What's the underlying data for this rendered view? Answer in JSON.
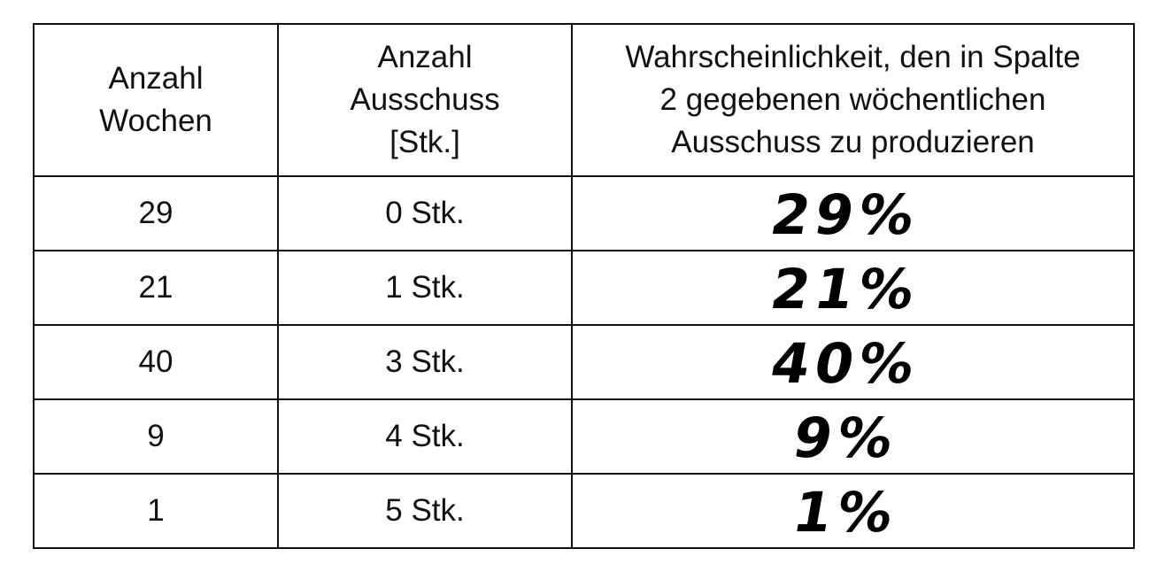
{
  "table": {
    "headers": [
      [
        "Anzahl",
        "Wochen"
      ],
      [
        "Anzahl",
        "Ausschuss",
        "[Stk.]"
      ],
      [
        "Wahrscheinlichkeit, den in Spalte",
        "2 gegebenen wöchentlichen",
        "Ausschuss zu produzieren"
      ]
    ],
    "rows": [
      {
        "weeks": "29",
        "scrap": "0 Stk.",
        "probability": "29%"
      },
      {
        "weeks": "21",
        "scrap": "1 Stk.",
        "probability": "21%"
      },
      {
        "weeks": "40",
        "scrap": "3 Stk.",
        "probability": "40%"
      },
      {
        "weeks": "9",
        "scrap": "4 Stk.",
        "probability": "9%"
      },
      {
        "weeks": "1",
        "scrap": "5 Stk.",
        "probability": "1%"
      }
    ]
  }
}
